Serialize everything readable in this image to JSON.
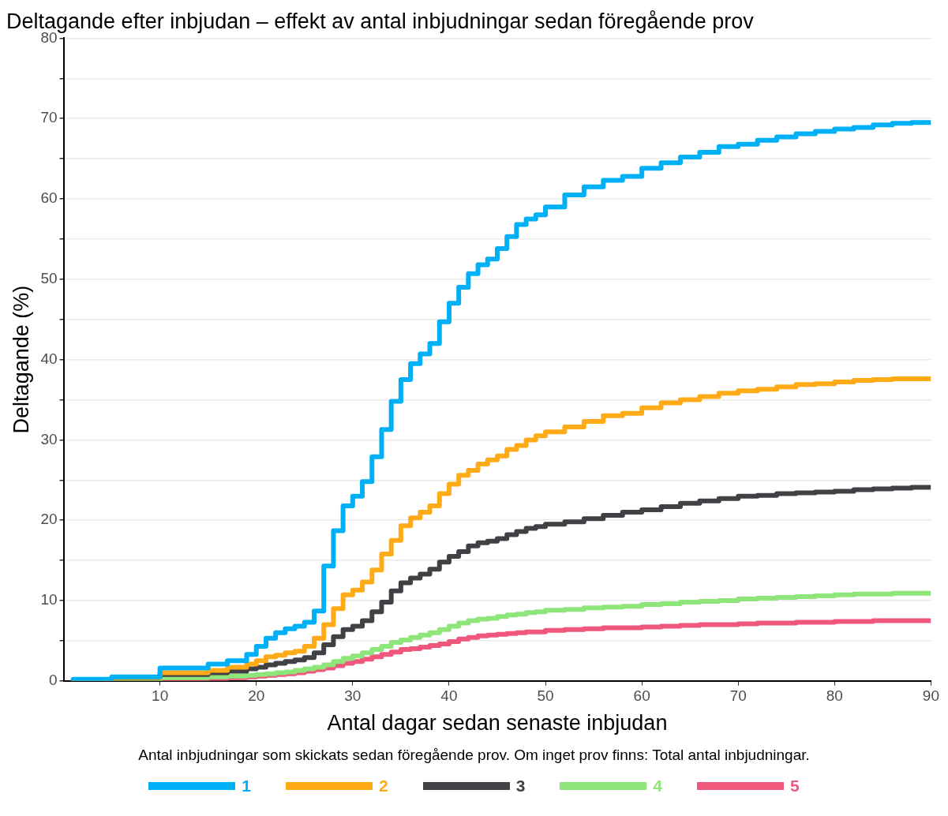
{
  "chart_data": {
    "type": "step",
    "title": "Deltagande efter inbjudan – effekt av antal inbjudningar sedan föregående prov",
    "xlabel": "Antal dagar sedan senaste inbjudan",
    "ylabel": "Deltagande (%)",
    "legend_title": "Antal inbjudningar som skickats sedan föregående prov. Om inget prov finns: Total antal inbjudningar.",
    "x": [
      1,
      5,
      10,
      15,
      17,
      19,
      20,
      21,
      22,
      23,
      24,
      25,
      26,
      27,
      28,
      29,
      30,
      31,
      32,
      33,
      34,
      35,
      36,
      37,
      38,
      39,
      40,
      41,
      42,
      43,
      44,
      45,
      46,
      47,
      48,
      49,
      50,
      52,
      54,
      56,
      58,
      60,
      62,
      64,
      66,
      68,
      70,
      72,
      74,
      76,
      78,
      80,
      82,
      84,
      86,
      88,
      90
    ],
    "series": [
      {
        "name": "1",
        "color": "#00b0f6",
        "values": [
          0,
          0.2,
          0.5,
          1.6,
          2.1,
          2.5,
          3.3,
          4.3,
          5.3,
          6,
          6.5,
          6.8,
          7.3,
          8.7,
          14.3,
          18.7,
          21.8,
          23,
          24.8,
          27.9,
          31.3,
          34.8,
          37.5,
          39.5,
          40.7,
          42,
          44.7,
          47,
          49,
          50.7,
          51.8,
          52.5,
          53.8,
          55.3,
          56.8,
          57.5,
          58,
          59,
          60.5,
          61.5,
          62.3,
          62.8,
          63.8,
          64.5,
          65.2,
          65.8,
          66.5,
          66.8,
          67.3,
          67.7,
          68.1,
          68.4,
          68.7,
          68.9,
          69.2,
          69.4,
          69.5
        ]
      },
      {
        "name": "2",
        "color": "#ffab18",
        "values": [
          0,
          0.1,
          0.4,
          1,
          1.3,
          1.7,
          2.1,
          2.5,
          3,
          3.2,
          3.5,
          3.7,
          4.3,
          5.3,
          7,
          9,
          10.7,
          11.3,
          12.3,
          13.8,
          15.8,
          17.5,
          19.3,
          20.3,
          21,
          21.8,
          23.3,
          24.5,
          25.6,
          26.2,
          27,
          27.5,
          28,
          28.8,
          29.3,
          30,
          30.5,
          31,
          31.6,
          32.3,
          33,
          33.3,
          34,
          34.6,
          35,
          35.4,
          35.8,
          36.1,
          36.3,
          36.6,
          36.9,
          37,
          37.2,
          37.4,
          37.5,
          37.6,
          37.6
        ]
      },
      {
        "name": "3",
        "color": "#404045",
        "values": [
          0,
          0.1,
          0.4,
          0.8,
          1,
          1.2,
          1.5,
          1.7,
          2,
          2.2,
          2.4,
          2.6,
          2.9,
          3.5,
          4.5,
          5.5,
          6.4,
          6.8,
          7.5,
          8.6,
          9.8,
          11.2,
          12.2,
          12.8,
          13.3,
          13.9,
          14.8,
          15.5,
          16.1,
          16.8,
          17.2,
          17.4,
          17.7,
          18.2,
          18.6,
          19,
          19.2,
          19.5,
          19.8,
          20.2,
          20.6,
          21,
          21.3,
          21.7,
          22.1,
          22.4,
          22.7,
          23,
          23.1,
          23.3,
          23.4,
          23.5,
          23.6,
          23.8,
          23.9,
          24,
          24.1
        ]
      },
      {
        "name": "4",
        "color": "#8ee67a",
        "values": [
          0,
          0.1,
          0.2,
          0.4,
          0.5,
          0.6,
          0.7,
          0.8,
          0.9,
          1,
          1.1,
          1.3,
          1.5,
          1.7,
          2,
          2.4,
          2.8,
          3.1,
          3.5,
          3.9,
          4.3,
          4.8,
          5.1,
          5.4,
          5.7,
          6,
          6.4,
          6.8,
          7.2,
          7.5,
          7.7,
          7.8,
          8,
          8.2,
          8.3,
          8.5,
          8.6,
          8.8,
          8.9,
          9.1,
          9.2,
          9.3,
          9.5,
          9.6,
          9.8,
          9.9,
          10,
          10.2,
          10.3,
          10.4,
          10.5,
          10.6,
          10.7,
          10.8,
          10.8,
          10.9,
          10.9
        ]
      },
      {
        "name": "5",
        "color": "#f0577d",
        "values": [
          null,
          null,
          0.1,
          0.2,
          0.3,
          0.4,
          0.5,
          0.6,
          0.7,
          0.8,
          0.9,
          1,
          1.2,
          1.4,
          1.6,
          1.9,
          2.2,
          2.4,
          2.7,
          3,
          3.3,
          3.6,
          3.9,
          4,
          4.2,
          4.4,
          4.6,
          4.9,
          5.2,
          5.4,
          5.6,
          5.7,
          5.8,
          5.9,
          6,
          6.1,
          6.1,
          6.3,
          6.4,
          6.5,
          6.6,
          6.6,
          6.7,
          6.8,
          6.9,
          7,
          7,
          7.1,
          7.2,
          7.2,
          7.3,
          7.3,
          7.4,
          7.4,
          7.5,
          7.5,
          7.5
        ]
      }
    ],
    "xlim": [
      0,
      90
    ],
    "xticks": [
      10,
      20,
      30,
      40,
      50,
      60,
      70,
      80,
      90
    ],
    "ylim": [
      0,
      80
    ],
    "yticks": [
      0,
      {
        "value": 5,
        "label": null
      },
      10,
      {
        "value": 15,
        "label": null
      },
      20,
      {
        "value": 25,
        "label": null
      },
      30,
      {
        "value": 35,
        "label": null
      },
      40,
      {
        "value": 45,
        "label": null
      },
      50,
      {
        "value": 55,
        "label": null
      },
      60,
      {
        "value": 65,
        "label": null
      },
      70,
      {
        "value": 75,
        "label": null
      },
      80
    ],
    "grid": "y",
    "legend": "bottom",
    "marker": "none",
    "line_style": "solid"
  }
}
